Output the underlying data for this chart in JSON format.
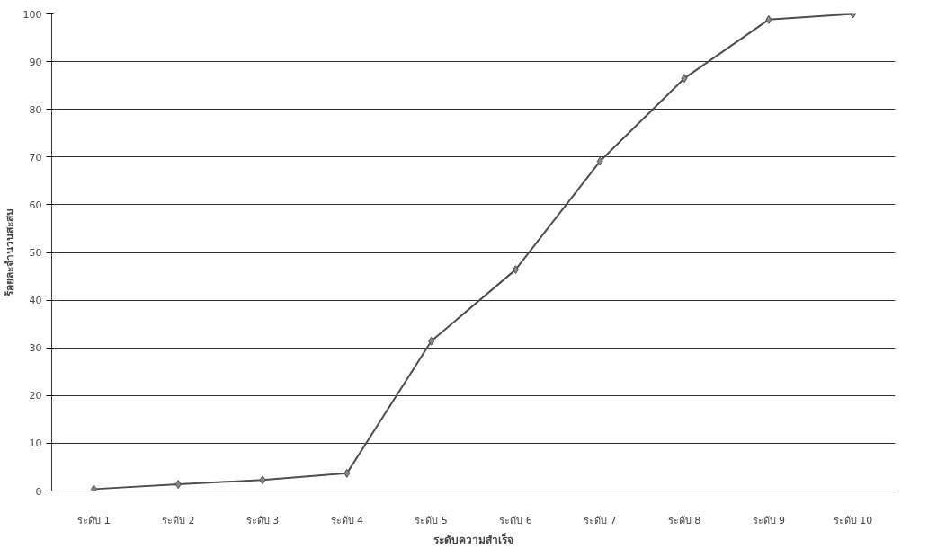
{
  "chart_data": {
    "type": "line",
    "xlabel": "ระดับความสำเร็จ",
    "ylabel": "ร้อยละจำนวนสะสม",
    "categories": [
      "ระดับ 1",
      "ระดับ 2",
      "ระดับ 3",
      "ระดับ 4",
      "ระดับ 5",
      "ระดับ 6",
      "ระดับ 7",
      "ระดับ 8",
      "ระดับ 9",
      "ระดับ 10"
    ],
    "series": [
      {
        "color": "#4d4d4d",
        "values": [
          0.4,
          1.4,
          2.3,
          3.7,
          31.4,
          46.4,
          69.1,
          86.5,
          98.8,
          100
        ]
      }
    ],
    "ylim": [
      0,
      100
    ],
    "yticks": [
      0,
      10,
      20,
      30,
      40,
      50,
      60,
      70,
      80,
      90,
      100
    ],
    "grid": "y",
    "marker": "diamond",
    "line_style": "solid"
  }
}
